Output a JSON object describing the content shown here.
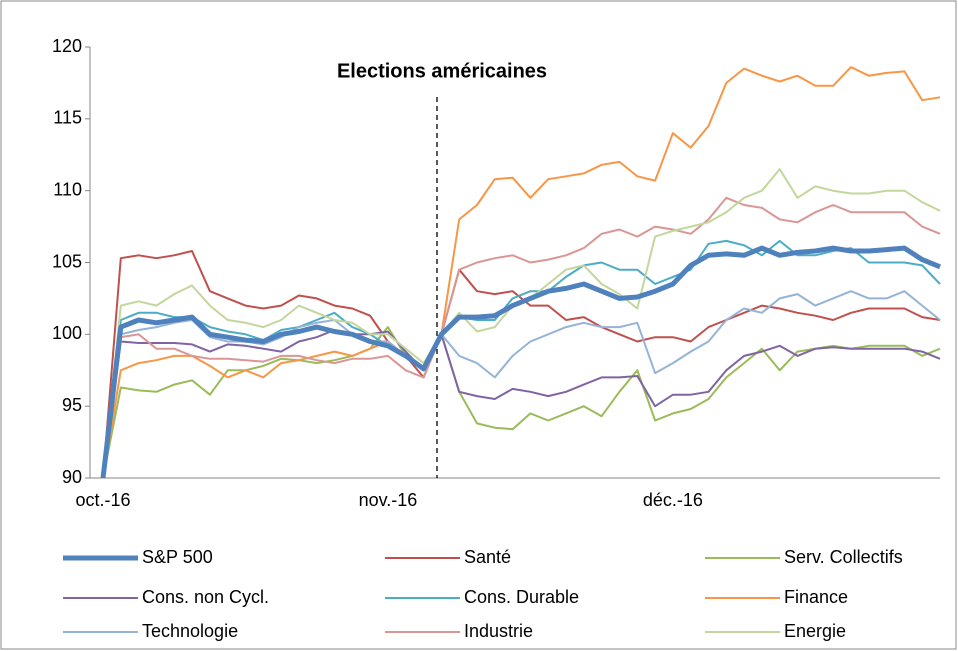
{
  "chart_data": {
    "type": "line",
    "annotation": "Elections américaines",
    "categories": [
      "oct.-16",
      null,
      null,
      null,
      null,
      null,
      null,
      null,
      null,
      null,
      null,
      null,
      null,
      null,
      null,
      null,
      "nov.-16",
      null,
      null,
      null,
      null,
      null,
      null,
      null,
      null,
      null,
      null,
      null,
      null,
      null,
      null,
      null,
      "déc.-16",
      null,
      null,
      null,
      null,
      null,
      null,
      null,
      null,
      null,
      null,
      null,
      null,
      null,
      null,
      null
    ],
    "ylim": [
      90,
      120
    ],
    "yticks": [
      90,
      95,
      100,
      105,
      110,
      115,
      120
    ],
    "grid": false,
    "legend": "bottom",
    "series": [
      {
        "name": "S&P 500",
        "color": "#4f81bd",
        "values": [
          90,
          100.5,
          101,
          100.8,
          101,
          101.2,
          100,
          99.8,
          99.6,
          99.5,
          100,
          100.2,
          100.5,
          100.2,
          100,
          99.5,
          99.2,
          98.5,
          97.6,
          100,
          101.2,
          101.2,
          101.3,
          102,
          102.5,
          103,
          103.2,
          103.5,
          103,
          102.5,
          102.6,
          103,
          103.5,
          104.8,
          105.5,
          105.6,
          105.5,
          106,
          105.5,
          105.7,
          105.8,
          106,
          105.8,
          105.8,
          105.9,
          106,
          105.2,
          104.7
        ]
      },
      {
        "name": "Santé",
        "color": "#c0504d",
        "values": [
          90,
          105.3,
          105.5,
          105.3,
          105.5,
          105.8,
          103,
          102.5,
          102,
          101.8,
          102,
          102.7,
          102.5,
          102,
          101.8,
          101.3,
          99.5,
          98.5,
          97,
          100,
          104.5,
          103,
          102.8,
          103,
          102,
          102,
          101,
          101.2,
          100.5,
          100,
          99.5,
          99.8,
          99.8,
          99.5,
          100.5,
          101,
          101.5,
          102,
          101.8,
          101.5,
          101.3,
          101,
          101.5,
          101.8,
          101.8,
          101.8,
          101.2,
          101
        ]
      },
      {
        "name": "Serv. Collectifs",
        "color": "#9bbb59",
        "values": [
          90,
          96.3,
          96.1,
          96,
          96.5,
          96.8,
          95.8,
          97.5,
          97.5,
          97.8,
          98.3,
          98.2,
          98,
          98.2,
          98.5,
          99,
          100.5,
          98.5,
          97.6,
          100,
          96,
          93.8,
          93.5,
          93.4,
          94.5,
          94,
          94.5,
          95,
          94.3,
          96,
          97.5,
          94,
          94.5,
          94.8,
          95.5,
          97,
          98,
          99,
          97.5,
          98.8,
          99,
          99.2,
          99,
          99.2,
          99.2,
          99.2,
          98.5,
          99
        ]
      },
      {
        "name": "Cons. non Cycl.",
        "color": "#8064a2",
        "values": [
          90,
          99.5,
          99.4,
          99.4,
          99.4,
          99.3,
          98.8,
          99.3,
          99.2,
          99,
          98.8,
          99.5,
          99.8,
          100.3,
          100,
          100,
          100.2,
          98.8,
          97.5,
          100,
          96,
          95.7,
          95.5,
          96.2,
          96,
          95.7,
          96,
          96.5,
          97,
          97,
          97.1,
          95,
          95.8,
          95.8,
          96,
          97.5,
          98.5,
          98.8,
          99.2,
          98.5,
          99,
          99.1,
          99,
          99,
          99,
          99,
          98.8,
          98.3
        ]
      },
      {
        "name": "Cons. Durable",
        "color": "#4bacc6",
        "values": [
          90,
          101,
          101.5,
          101.5,
          101.2,
          101.2,
          100.5,
          100.2,
          100,
          99.6,
          100.3,
          100.5,
          101,
          101.5,
          100.5,
          100,
          99.2,
          98.5,
          97.6,
          100,
          101.2,
          101,
          101,
          102.5,
          103,
          103,
          104,
          104.8,
          105,
          104.5,
          104.5,
          103.5,
          104,
          104.5,
          106.3,
          106.5,
          106.2,
          105.5,
          106.5,
          105.5,
          105.5,
          105.8,
          106,
          105,
          105,
          105,
          104.8,
          103.5
        ]
      },
      {
        "name": "Finance",
        "color": "#f79646",
        "values": [
          90,
          97.5,
          98,
          98.2,
          98.5,
          98.5,
          97.8,
          97,
          97.5,
          97,
          98,
          98.2,
          98.5,
          98.8,
          98.5,
          99,
          99.5,
          98.5,
          97.5,
          100,
          108,
          109,
          110.8,
          110.9,
          109.5,
          110.8,
          111,
          111.2,
          111.8,
          112,
          111,
          110.7,
          114,
          113,
          114.5,
          117.5,
          118.5,
          118,
          117.6,
          118,
          117.3,
          117.3,
          118.6,
          118,
          118.2,
          118.3,
          116.3,
          116.5
        ]
      },
      {
        "name": "Technologie",
        "color": "#95b3d7",
        "values": [
          90,
          100,
          100.3,
          100.5,
          100.8,
          101,
          99.8,
          99.5,
          99.5,
          99.3,
          99.8,
          100.5,
          100.8,
          101,
          100,
          99.5,
          99.5,
          98.5,
          97.5,
          100,
          98.5,
          98,
          97,
          98.5,
          99.5,
          100,
          100.5,
          100.8,
          100.5,
          100.5,
          100.8,
          97.3,
          98,
          98.8,
          99.5,
          101,
          101.8,
          101.5,
          102.5,
          102.8,
          102,
          102.5,
          103,
          102.5,
          102.5,
          103,
          102,
          101
        ]
      },
      {
        "name": "Industrie",
        "color": "#d99694",
        "values": [
          90,
          99.8,
          100,
          99,
          99,
          98.5,
          98.3,
          98.3,
          98.2,
          98.1,
          98.5,
          98.5,
          98.2,
          98,
          98.3,
          98.3,
          98.5,
          97.5,
          97,
          100,
          104.5,
          105,
          105.3,
          105.5,
          105,
          105.2,
          105.5,
          106,
          107,
          107.3,
          106.8,
          107.5,
          107.3,
          107,
          108,
          109.5,
          109,
          108.8,
          108,
          107.8,
          108.5,
          109,
          108.5,
          108.5,
          108.5,
          108.5,
          107.5,
          107
        ]
      },
      {
        "name": "Energie",
        "color": "#c3d69b",
        "values": [
          90,
          102,
          102.3,
          102,
          102.8,
          103.4,
          102,
          101,
          100.8,
          100.5,
          101,
          102,
          101.5,
          101,
          100.8,
          100,
          100,
          99,
          98,
          100,
          101.5,
          100.2,
          100.5,
          102,
          102.5,
          103.5,
          104.5,
          104.8,
          103.5,
          102.8,
          101.8,
          106.8,
          107.2,
          107.5,
          107.8,
          108.5,
          109.5,
          110,
          111.5,
          109.5,
          110.3,
          110,
          109.8,
          109.8,
          110,
          110,
          109.2,
          108.6
        ]
      }
    ]
  }
}
